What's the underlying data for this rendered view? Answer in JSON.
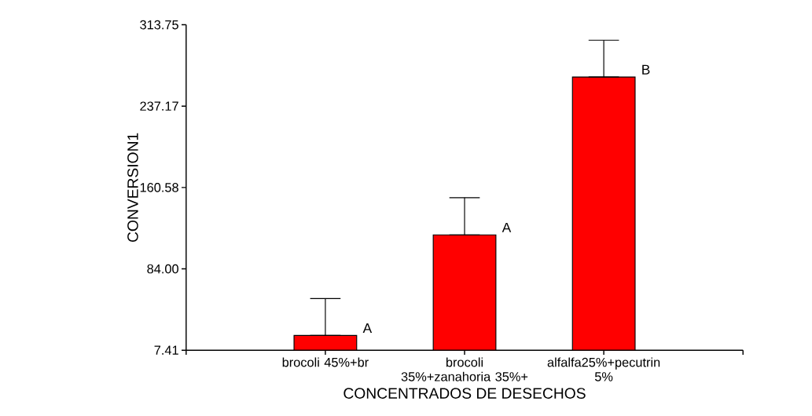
{
  "chart_data": {
    "type": "bar",
    "xlabel": "CONCENTRADOS DE DESECHOS",
    "ylabel": "CONVERSION1",
    "categories": [
      "brocoli 45%+br",
      "brocoli 35%+zanahoria 35%+",
      "alfalfa25%+pecutrin 5%"
    ],
    "values": [
      21.3,
      116.0,
      264.6
    ],
    "errors": [
      [
        21.3,
        56.0
      ],
      [
        116.0,
        151.0
      ],
      [
        264.6,
        299.2
      ]
    ],
    "color": "#ff0000",
    "ylim": [
      7.41,
      313.75
    ],
    "yticks": [
      7.41,
      {
        "value": 84,
        "label": "84.00"
      },
      160.58,
      237.17,
      313.75
    ],
    "grid": false,
    "annotations": [
      "A",
      "A",
      "B"
    ]
  }
}
